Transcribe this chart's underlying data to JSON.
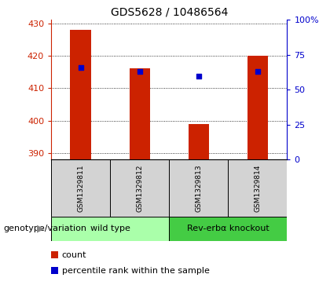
{
  "title": "GDS5628 / 10486564",
  "samples": [
    "GSM1329811",
    "GSM1329812",
    "GSM1329813",
    "GSM1329814"
  ],
  "count_values": [
    428,
    416,
    399,
    420
  ],
  "percentile_values": [
    66,
    63,
    60,
    63
  ],
  "ylim_left": [
    388,
    431
  ],
  "ylim_right": [
    0,
    100
  ],
  "yticks_left": [
    390,
    400,
    410,
    420,
    430
  ],
  "yticks_right": [
    0,
    25,
    50,
    75,
    100
  ],
  "ytick_labels_right": [
    "0",
    "25",
    "50",
    "75",
    "100%"
  ],
  "bar_color": "#cc2200",
  "dot_color": "#0000cc",
  "plot_bg": "#ffffff",
  "sample_bg": "#d3d3d3",
  "groups": [
    {
      "label": "wild type",
      "indices": [
        0,
        1
      ],
      "color": "#aaffaa"
    },
    {
      "label": "Rev-erbα knockout",
      "indices": [
        2,
        3
      ],
      "color": "#44cc44"
    }
  ],
  "group_label": "genotype/variation",
  "legend_items": [
    {
      "color": "#cc2200",
      "label": "count"
    },
    {
      "color": "#0000cc",
      "label": "percentile rank within the sample"
    }
  ],
  "title_fontsize": 10,
  "tick_fontsize": 8,
  "sample_fontsize": 6.5,
  "group_fontsize": 8,
  "legend_fontsize": 8,
  "group_label_fontsize": 8
}
